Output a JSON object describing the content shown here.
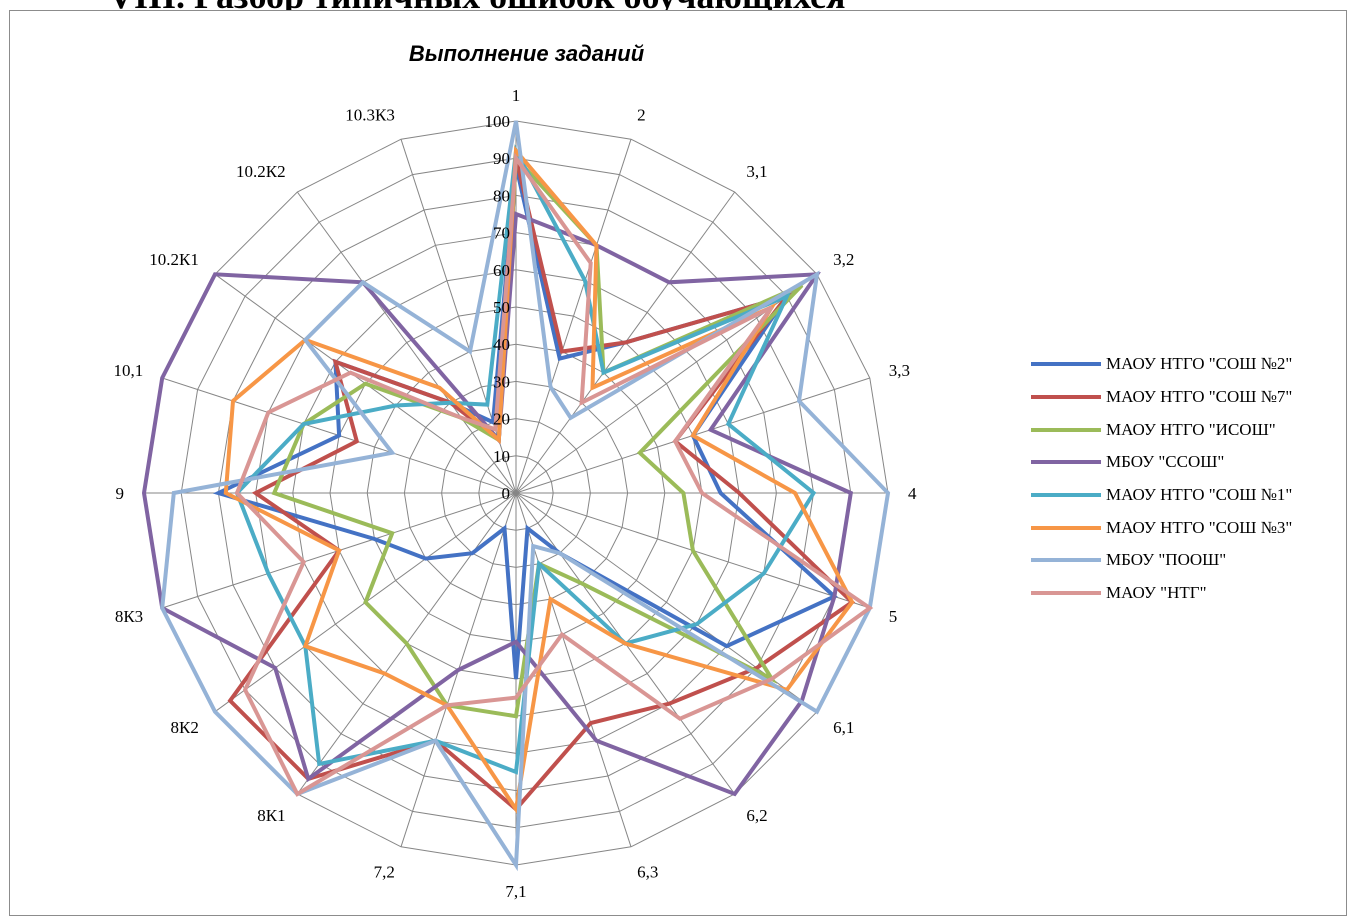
{
  "heading": "VIII.   Разбор типичных ошибок обучающихся",
  "chart_data": {
    "type": "radar",
    "title": "Выполнение заданий",
    "categories": [
      "1",
      "2",
      "3,1",
      "3,2",
      "3,3",
      "4",
      "5",
      "6,1",
      "6,2",
      "6,3",
      "7,1",
      "7,2",
      "8К1",
      "8К2",
      "8К3",
      "9",
      "10,1",
      "10.2К1",
      "10.2К2",
      "10.3К3"
    ],
    "radial_ticks": [
      "0",
      "10",
      "20",
      "30",
      "40",
      "50",
      "60",
      "70",
      "80",
      "90",
      "100"
    ],
    "rmax": 100,
    "grid": true,
    "legend_position": "right",
    "series": [
      {
        "name": "МАОУ НТГО \"СОШ №2\"",
        "color": "#4472c4",
        "values": [
          88,
          38,
          50,
          90,
          50,
          55,
          90,
          70,
          20,
          10,
          50,
          10,
          20,
          30,
          40,
          80,
          50,
          60,
          30,
          20
        ]
      },
      {
        "name": "МАОУ НТГО \"СОШ №7\"",
        "color": "#c0504d",
        "values": [
          90,
          40,
          50,
          90,
          45,
          60,
          95,
          80,
          70,
          65,
          85,
          70,
          95,
          95,
          50,
          70,
          45,
          60,
          30,
          15
        ]
      },
      {
        "name": "МАОУ НТГО \"ИСОШ\"",
        "color": "#9bbb59",
        "values": [
          90,
          70,
          40,
          95,
          35,
          45,
          50,
          85,
          30,
          20,
          60,
          60,
          50,
          50,
          35,
          65,
          60,
          50,
          25,
          15
        ]
      },
      {
        "name": "МБОУ \"ССОШ\"",
        "color": "#8064a2",
        "values": [
          75,
          70,
          70,
          100,
          55,
          90,
          90,
          95,
          100,
          70,
          40,
          50,
          95,
          80,
          100,
          100,
          100,
          100,
          70,
          15
        ]
      },
      {
        "name": "МАОУ НТГО \"СОШ №1\"",
        "color": "#4bacc6",
        "values": [
          92,
          60,
          40,
          90,
          60,
          80,
          70,
          60,
          50,
          20,
          75,
          70,
          90,
          70,
          70,
          75,
          60,
          40,
          30,
          25
        ]
      },
      {
        "name": "МАОУ НТГО \"СОШ №3\"",
        "color": "#f79646",
        "values": [
          92,
          70,
          35,
          85,
          50,
          75,
          95,
          90,
          50,
          30,
          85,
          60,
          60,
          70,
          50,
          78,
          80,
          70,
          35,
          15
        ]
      },
      {
        "name": "МБОУ \"ПООШ\"",
        "color": "#95b3d7",
        "values": [
          100,
          30,
          25,
          100,
          80,
          100,
          100,
          100,
          20,
          15,
          100,
          70,
          100,
          100,
          100,
          92,
          35,
          70,
          70,
          40
        ]
      },
      {
        "name": "МАОУ \"НТГ\"",
        "color": "#d99694",
        "values": [
          90,
          65,
          30,
          85,
          45,
          50,
          100,
          85,
          75,
          40,
          55,
          60,
          100,
          90,
          60,
          75,
          70,
          55,
          25,
          18
        ]
      }
    ]
  }
}
